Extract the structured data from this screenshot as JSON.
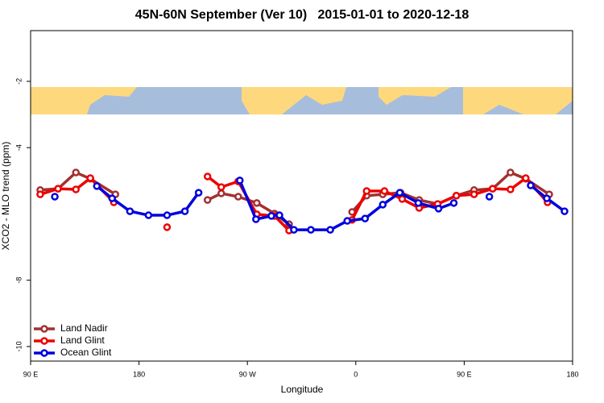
{
  "chart_data": {
    "type": "line",
    "title": "45N-60N September (Ver 10)   2015-01-01 to 2020-12-18",
    "xlabel": "Longitude",
    "ylabel": "XCO2 - MLO trend (ppm)",
    "xlim": [
      90,
      540
    ],
    "ylim": [
      -10.44,
      -0.47
    ],
    "xticks": [
      {
        "value": 90,
        "label": "90 E"
      },
      180,
      {
        "value": 270,
        "label": "90 W"
      },
      {
        "value": 360,
        "label": "0"
      },
      {
        "value": 450,
        "label": "90 E"
      },
      {
        "value": 540,
        "label": "180"
      }
    ],
    "yticks": [
      -10,
      -8,
      -4,
      -2
    ],
    "legend": "bottom-left",
    "series": [
      {
        "name": "Land Nadir",
        "color": "#a33030",
        "x": [
          98,
          112.8,
          127.6,
          139.6,
          160.4,
          null,
          236.9,
          248.3,
          262.4,
          277.8,
          292.5,
          304.6,
          null,
          356.9,
          369,
          382.4,
          397.2,
          412.6,
          428,
          443.5,
          458.2,
          473.6,
          488.4,
          501.1,
          520.6
        ],
        "values": [
          -5.28,
          -5.24,
          -4.75,
          -4.94,
          -5.41,
          null,
          -5.58,
          -5.38,
          -5.48,
          -5.67,
          -5.99,
          -6.31,
          null,
          -5.94,
          -5.45,
          -5.41,
          -5.36,
          -5.58,
          -5.7,
          -5.45,
          -5.28,
          -5.24,
          -4.75,
          -4.94,
          -5.41
        ]
      },
      {
        "name": "Land Glint",
        "color": "#ee0000",
        "x": [
          98,
          112.8,
          127.6,
          139.6,
          159.1,
          null,
          203.3,
          null,
          236.9,
          248.3,
          262.4,
          277.8,
          292.5,
          304.6,
          null,
          356.9,
          369,
          383.8,
          398.5,
          412.6,
          428,
          443.5,
          458.2,
          473.6,
          488.4,
          501.1,
          519.2
        ],
        "values": [
          -5.41,
          -5.24,
          -5.26,
          -4.92,
          -5.65,
          null,
          -6.4,
          null,
          -4.87,
          -5.19,
          -5.02,
          -6.01,
          -6.06,
          -6.5,
          null,
          -6.18,
          -5.31,
          -5.31,
          -5.55,
          -5.82,
          -5.7,
          -5.45,
          -5.41,
          -5.24,
          -5.26,
          -4.92,
          -5.65
        ]
      },
      {
        "name": "Ocean Glint",
        "color": "#0000dd",
        "x": [
          110.1,
          null,
          145,
          157.7,
          172.5,
          187.9,
          203.3,
          218.1,
          229.5,
          null,
          263.7,
          277.1,
          289.9,
          296.6,
          308.6,
          322.7,
          338.8,
          352.9,
          367.7,
          382.4,
          396.5,
          411.9,
          428.7,
          441.4,
          null,
          470.9,
          null,
          505.2,
          518.6,
          533.3
        ],
        "values": [
          -5.48,
          null,
          -5.16,
          -5.53,
          -5.92,
          -6.04,
          -6.04,
          -5.92,
          -5.36,
          null,
          -4.99,
          -6.16,
          -6.06,
          -6.04,
          -6.48,
          -6.48,
          -6.48,
          -6.21,
          -6.14,
          -5.72,
          -5.36,
          -5.67,
          -5.84,
          -5.67,
          null,
          -5.48,
          null,
          -5.14,
          -5.53,
          -5.92
        ]
      }
    ]
  }
}
